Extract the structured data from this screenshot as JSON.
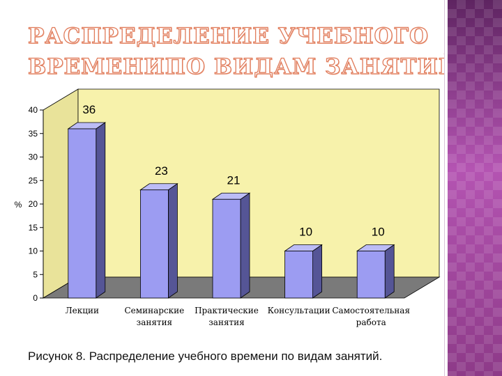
{
  "slide": {
    "title_lines": [
      "РАСПРЕДЕЛЕНИЕ УЧЕБНОГО",
      "ВРЕМЕНИПО ВИДАМ ЗАНЯТИЙ"
    ],
    "caption": "Рисунок 8. Распределение учебного времени по видам занятий.",
    "accent_color": "#e07b5a",
    "panel_color": "#8d3a88"
  },
  "chart_data": {
    "type": "bar",
    "title": "",
    "xlabel": "",
    "ylabel": "%",
    "categories": [
      [
        "Лекции"
      ],
      [
        "Семинарские",
        "занятия"
      ],
      [
        "Практические",
        "занятия"
      ],
      [
        "Консультации"
      ],
      [
        "Самостоятельная",
        "работа"
      ]
    ],
    "values": [
      36,
      23,
      21,
      10,
      10
    ],
    "data_labels": [
      "36",
      "23",
      "21",
      "10",
      "10"
    ],
    "ylim": [
      0,
      40
    ],
    "yticks": [
      "0",
      "5",
      "10",
      "15",
      "20",
      "25",
      "30",
      "35",
      "40"
    ],
    "grid": false,
    "legend": "none",
    "three_d": true,
    "colors": {
      "bar": "#9c9cf2",
      "bar_side": "#555596",
      "bar_top": "#bcbcf6",
      "back_wall": "#f7f2ab",
      "side_wall": "#e9e39a",
      "floor": "#7a7a7a"
    }
  }
}
